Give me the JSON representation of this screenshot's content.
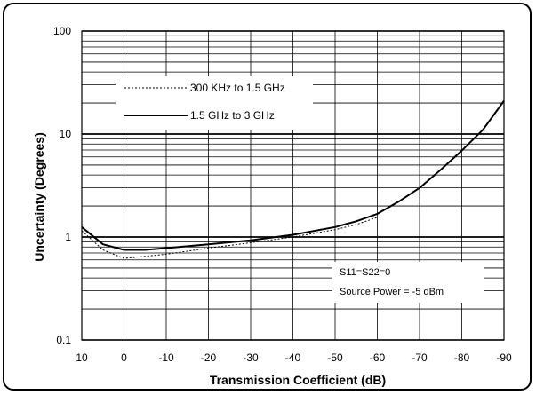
{
  "chart_data": {
    "type": "line",
    "xlabel": "Transmission Coefficient (dB)",
    "ylabel": "Uncertainty (Degrees)",
    "xlim": [
      10,
      -90
    ],
    "ylim": [
      0.1,
      100
    ],
    "yscale": "log",
    "grid": true,
    "x_ticks": [
      "10",
      "0",
      "-10",
      "-20",
      "-30",
      "-40",
      "-50",
      "-60",
      "-70",
      "-80",
      "-90"
    ],
    "y_ticks": [
      "0.1",
      "1",
      "10",
      "100"
    ],
    "legend_position": "top-left",
    "series": [
      {
        "name": "300 KHz to 1.5 GHz",
        "style": "dotted",
        "x": [
          10,
          5,
          0,
          -10,
          -20,
          -30,
          -40,
          -50,
          -55,
          -60
        ],
        "y": [
          1.15,
          0.75,
          0.62,
          0.68,
          0.78,
          0.88,
          1.0,
          1.18,
          1.32,
          1.55
        ]
      },
      {
        "name": "1.5 GHz to 3 GHz",
        "style": "solid",
        "x": [
          10,
          5,
          0,
          -5,
          -10,
          -20,
          -30,
          -40,
          -50,
          -55,
          -60,
          -65,
          -70,
          -75,
          -80,
          -85,
          -90
        ],
        "y": [
          1.25,
          0.85,
          0.75,
          0.75,
          0.78,
          0.85,
          0.93,
          1.05,
          1.25,
          1.42,
          1.68,
          2.2,
          3.0,
          4.5,
          6.9,
          11.0,
          21.0
        ]
      }
    ],
    "annotations": [
      "S11=S22=0",
      "Source Power = -5 dBm"
    ]
  },
  "colors": {
    "line": "#000000",
    "grid": "#000000"
  }
}
